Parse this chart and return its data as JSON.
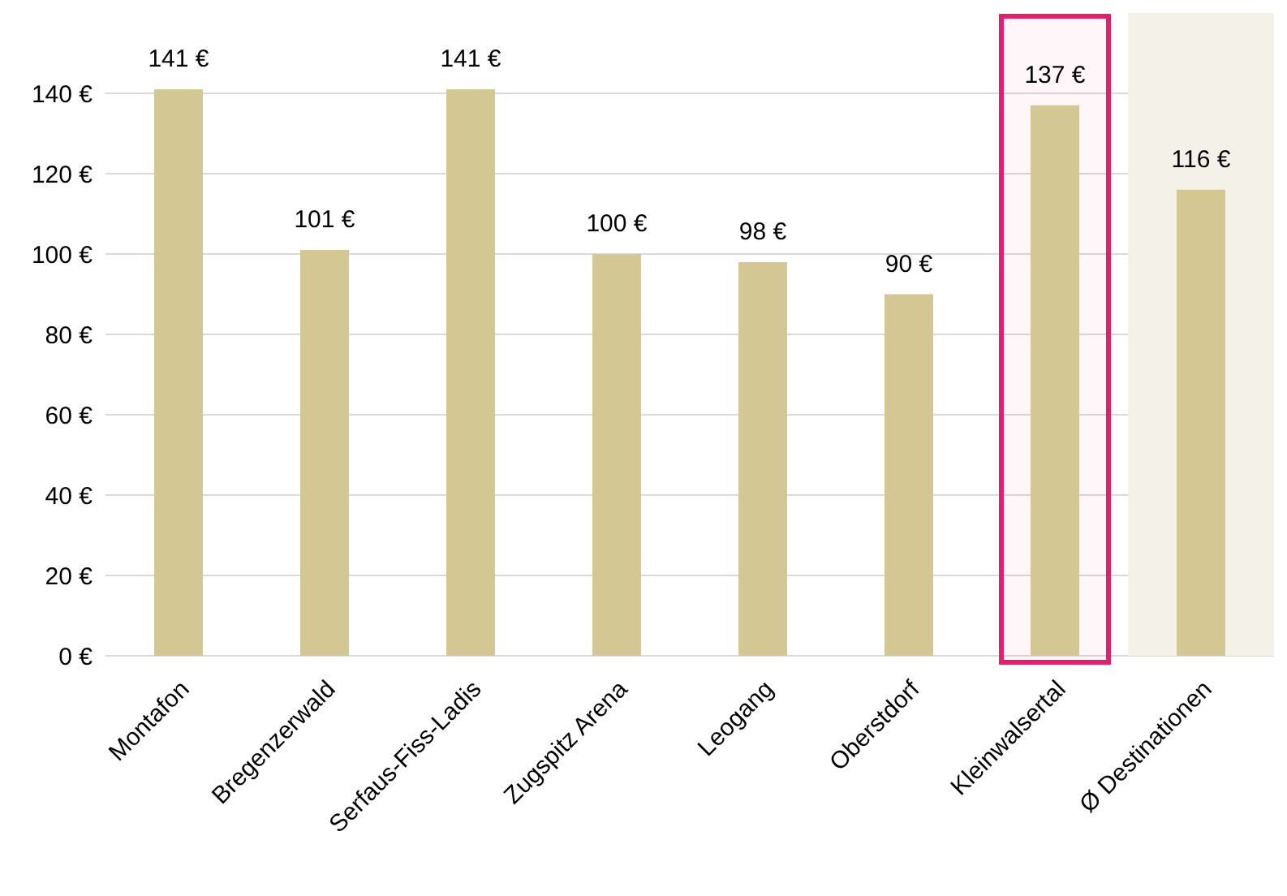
{
  "chart_data": {
    "type": "bar",
    "categories": [
      "Montafon",
      "Bregenzerwald",
      "Serfaus-Fiss-Ladis",
      "Zugspitz Arena",
      "Leogang",
      "Oberstdorf",
      "Kleinwalsertal",
      "Ø Destinationen"
    ],
    "values": [
      141,
      101,
      141,
      100,
      98,
      90,
      137,
      116
    ],
    "value_labels": [
      "141 €",
      "101 €",
      "141 €",
      "100 €",
      "98 €",
      "90 €",
      "137 €",
      "116 €"
    ],
    "color": "#d3c893",
    "ylim": [
      0,
      160
    ],
    "yticks": [
      {
        "value": 0,
        "label": "0 €"
      },
      {
        "value": 20,
        "label": "20 €"
      },
      {
        "value": 40,
        "label": "40 €"
      },
      {
        "value": 60,
        "label": "60 €"
      },
      {
        "value": 80,
        "label": "80 €"
      },
      {
        "value": 100,
        "label": "100 €"
      },
      {
        "value": 120,
        "label": "120 €"
      },
      {
        "value": 140,
        "label": "140 €"
      }
    ],
    "grid": "y",
    "bands": [
      {
        "axis": "x",
        "from": "Ø Destinationen",
        "to": "Ø Destinationen",
        "color": "#f4f1e8"
      },
      {
        "axis": "x",
        "from": "Kleinwalsertal",
        "to": "Kleinwalsertal",
        "color": "#e0206a"
      }
    ]
  }
}
